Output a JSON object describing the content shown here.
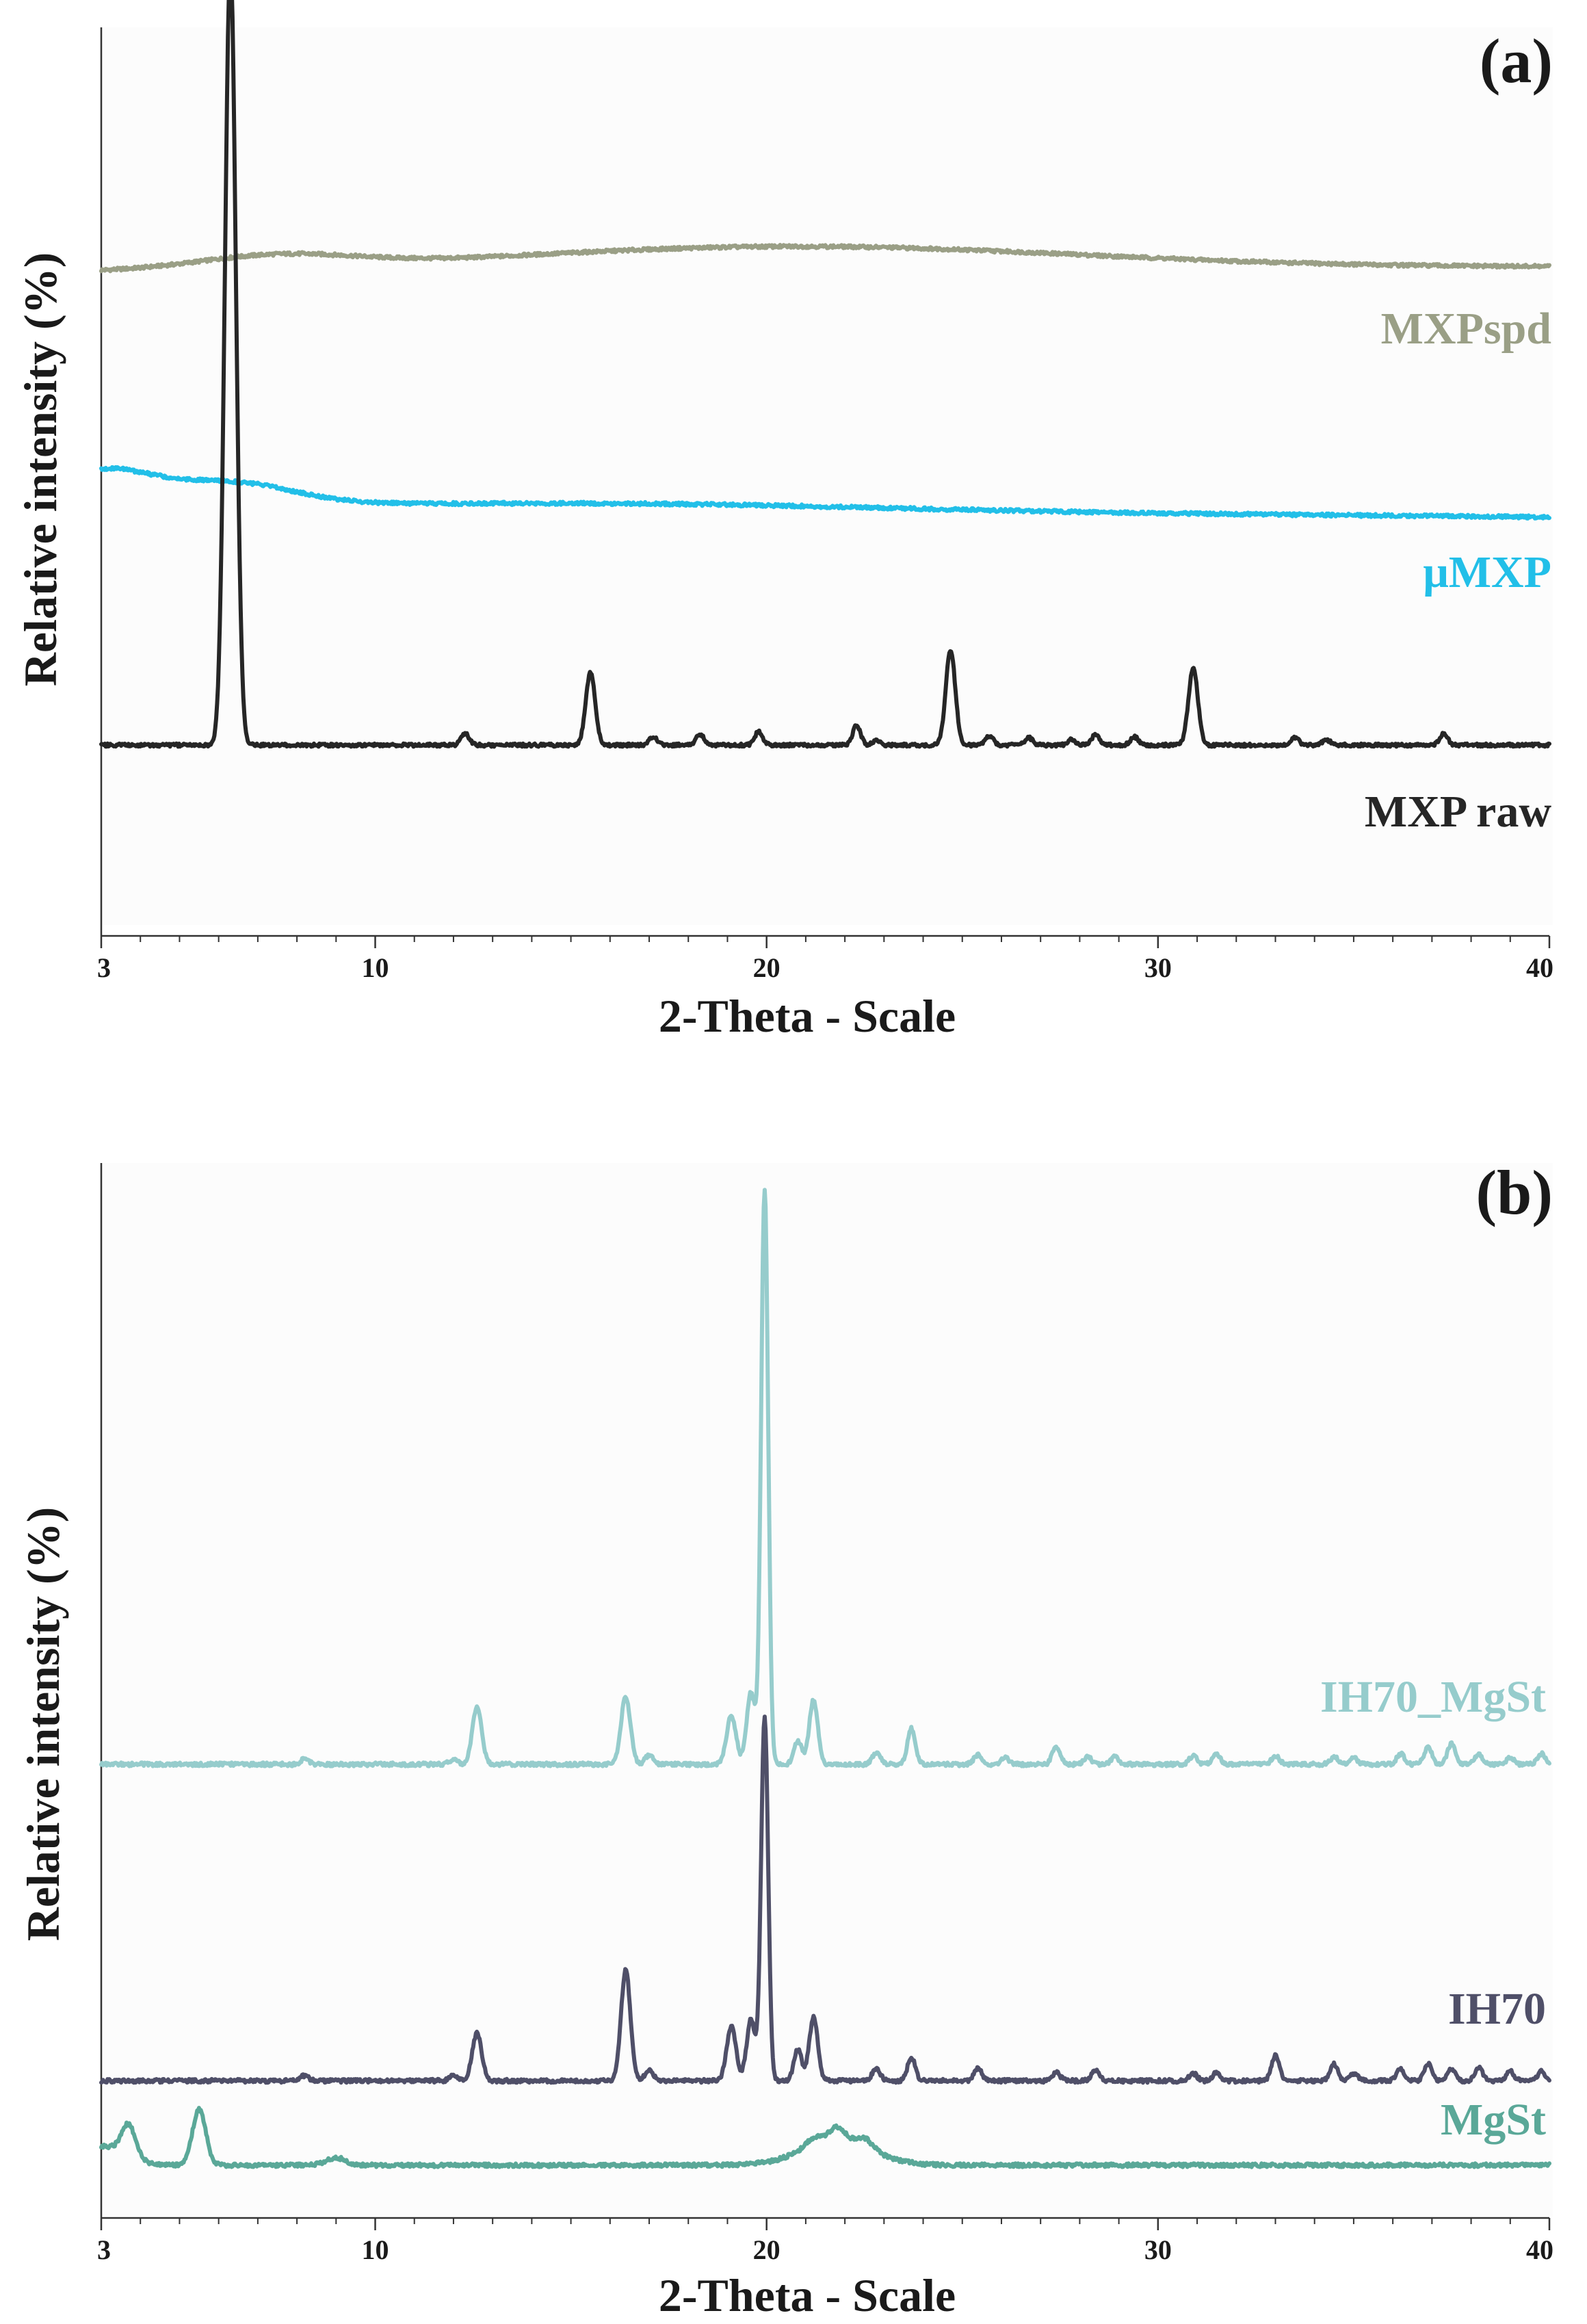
{
  "chart_data": [
    {
      "type": "line",
      "panel_label": "(a)",
      "xlabel": "2-Theta - Scale",
      "ylabel": "Relative intensity (%)",
      "xlim": [
        3,
        40
      ],
      "x_ticks": [
        3,
        10,
        20,
        30,
        40
      ],
      "y_ticks": [],
      "grid": false,
      "series": [
        {
          "name": "MXPspd",
          "color": "#9a9f86",
          "baseline": 73,
          "features": [
            {
              "type": "hump",
              "x": 7.5,
              "height": 1.4,
              "width": 2.0
            },
            {
              "type": "hump",
              "x": 20.5,
              "height": 2.6,
              "width": 7.5
            }
          ],
          "end_drift": 0.6
        },
        {
          "name": "μMXP",
          "color": "#22bfe8",
          "baseline": 47.5,
          "features": [
            {
              "type": "hump",
              "x": 3.0,
              "height": 3.6,
              "width": 1.3
            },
            {
              "type": "hump",
              "x": 6.3,
              "height": 2.4,
              "width": 1.6
            },
            {
              "type": "hump",
              "x": 17.0,
              "height": 0.6,
              "width": 6.0
            }
          ],
          "end_drift": -1.4
        },
        {
          "name": "MXP raw",
          "color": "#262626",
          "baseline": 21,
          "features": [
            {
              "type": "peak",
              "x": 6.3,
              "height": 86,
              "width": 0.14
            },
            {
              "type": "peak",
              "x": 12.3,
              "height": 1.3,
              "width": 0.1
            },
            {
              "type": "peak",
              "x": 15.5,
              "height": 8.0,
              "width": 0.12
            },
            {
              "type": "peak",
              "x": 17.1,
              "height": 0.9,
              "width": 0.1
            },
            {
              "type": "peak",
              "x": 18.3,
              "height": 1.2,
              "width": 0.1
            },
            {
              "type": "peak",
              "x": 19.8,
              "height": 1.5,
              "width": 0.1
            },
            {
              "type": "peak",
              "x": 22.3,
              "height": 2.2,
              "width": 0.1
            },
            {
              "type": "peak",
              "x": 22.8,
              "height": 0.5,
              "width": 0.1
            },
            {
              "type": "peak",
              "x": 24.7,
              "height": 10.5,
              "width": 0.12
            },
            {
              "type": "peak",
              "x": 25.7,
              "height": 1.0,
              "width": 0.1
            },
            {
              "type": "peak",
              "x": 26.7,
              "height": 0.8,
              "width": 0.1
            },
            {
              "type": "peak",
              "x": 27.8,
              "height": 0.6,
              "width": 0.1
            },
            {
              "type": "peak",
              "x": 28.4,
              "height": 1.1,
              "width": 0.1
            },
            {
              "type": "peak",
              "x": 29.4,
              "height": 0.9,
              "width": 0.1
            },
            {
              "type": "peak",
              "x": 30.9,
              "height": 8.5,
              "width": 0.12
            },
            {
              "type": "peak",
              "x": 33.5,
              "height": 0.8,
              "width": 0.1
            },
            {
              "type": "peak",
              "x": 34.3,
              "height": 0.6,
              "width": 0.1
            },
            {
              "type": "peak",
              "x": 37.3,
              "height": 1.3,
              "width": 0.1
            }
          ],
          "end_drift": 0
        }
      ]
    },
    {
      "type": "line",
      "panel_label": "(b)",
      "xlabel": "2-Theta - Scale",
      "ylabel": "Relative intensity (%)",
      "xlim": [
        3,
        40
      ],
      "x_ticks": [
        3,
        10,
        20,
        30,
        40
      ],
      "y_ticks": [],
      "grid": false,
      "series": [
        {
          "name": "IH70_MgSt",
          "color": "#96cccc",
          "baseline": 43,
          "features": [
            {
              "type": "peak",
              "x": 8.2,
              "height": 0.5,
              "width": 0.1
            },
            {
              "type": "peak",
              "x": 12.0,
              "height": 0.5,
              "width": 0.1
            },
            {
              "type": "peak",
              "x": 12.6,
              "height": 5.4,
              "width": 0.12
            },
            {
              "type": "peak",
              "x": 16.4,
              "height": 6.4,
              "width": 0.12
            },
            {
              "type": "peak",
              "x": 17.0,
              "height": 0.9,
              "width": 0.1
            },
            {
              "type": "peak",
              "x": 19.1,
              "height": 4.6,
              "width": 0.12
            },
            {
              "type": "peak",
              "x": 19.6,
              "height": 6.8,
              "width": 0.11
            },
            {
              "type": "peak",
              "x": 19.95,
              "height": 54.5,
              "width": 0.09
            },
            {
              "type": "peak",
              "x": 20.8,
              "height": 2.2,
              "width": 0.1
            },
            {
              "type": "peak",
              "x": 21.2,
              "height": 6.1,
              "width": 0.11
            },
            {
              "type": "peak",
              "x": 22.8,
              "height": 1.1,
              "width": 0.1
            },
            {
              "type": "peak",
              "x": 23.7,
              "height": 3.4,
              "width": 0.1
            },
            {
              "type": "peak",
              "x": 25.4,
              "height": 0.9,
              "width": 0.1
            },
            {
              "type": "peak",
              "x": 26.1,
              "height": 0.6,
              "width": 0.1
            },
            {
              "type": "peak",
              "x": 27.4,
              "height": 1.7,
              "width": 0.1
            },
            {
              "type": "peak",
              "x": 28.2,
              "height": 0.7,
              "width": 0.1
            },
            {
              "type": "peak",
              "x": 28.9,
              "height": 0.7,
              "width": 0.1
            },
            {
              "type": "peak",
              "x": 30.9,
              "height": 0.8,
              "width": 0.1
            },
            {
              "type": "peak",
              "x": 31.5,
              "height": 0.9,
              "width": 0.1
            },
            {
              "type": "peak",
              "x": 33.0,
              "height": 0.8,
              "width": 0.1
            },
            {
              "type": "peak",
              "x": 34.5,
              "height": 0.7,
              "width": 0.1
            },
            {
              "type": "peak",
              "x": 35.0,
              "height": 0.6,
              "width": 0.1
            },
            {
              "type": "peak",
              "x": 36.2,
              "height": 1.0,
              "width": 0.1
            },
            {
              "type": "peak",
              "x": 36.9,
              "height": 1.6,
              "width": 0.1
            },
            {
              "type": "peak",
              "x": 37.5,
              "height": 2.0,
              "width": 0.1
            },
            {
              "type": "peak",
              "x": 38.2,
              "height": 0.9,
              "width": 0.1
            },
            {
              "type": "peak",
              "x": 39.0,
              "height": 0.6,
              "width": 0.1
            },
            {
              "type": "peak",
              "x": 39.8,
              "height": 1.0,
              "width": 0.1
            }
          ],
          "end_drift": 0
        },
        {
          "name": "IH70",
          "color": "#4f4f68",
          "baseline": 13,
          "features": [
            {
              "type": "peak",
              "x": 8.2,
              "height": 0.5,
              "width": 0.1
            },
            {
              "type": "peak",
              "x": 12.0,
              "height": 0.5,
              "width": 0.1
            },
            {
              "type": "peak",
              "x": 12.6,
              "height": 4.5,
              "width": 0.12
            },
            {
              "type": "peak",
              "x": 16.4,
              "height": 10.5,
              "width": 0.12
            },
            {
              "type": "peak",
              "x": 17.0,
              "height": 1.1,
              "width": 0.1
            },
            {
              "type": "peak",
              "x": 19.1,
              "height": 5.2,
              "width": 0.12
            },
            {
              "type": "peak",
              "x": 19.6,
              "height": 5.8,
              "width": 0.11
            },
            {
              "type": "peak",
              "x": 19.95,
              "height": 34.5,
              "width": 0.09
            },
            {
              "type": "peak",
              "x": 20.8,
              "height": 3.0,
              "width": 0.1
            },
            {
              "type": "peak",
              "x": 21.2,
              "height": 6.0,
              "width": 0.11
            },
            {
              "type": "peak",
              "x": 22.8,
              "height": 1.2,
              "width": 0.1
            },
            {
              "type": "peak",
              "x": 23.7,
              "height": 2.2,
              "width": 0.1
            },
            {
              "type": "peak",
              "x": 25.4,
              "height": 1.2,
              "width": 0.1
            },
            {
              "type": "peak",
              "x": 27.4,
              "height": 0.8,
              "width": 0.1
            },
            {
              "type": "peak",
              "x": 28.4,
              "height": 1.0,
              "width": 0.1
            },
            {
              "type": "peak",
              "x": 30.9,
              "height": 0.7,
              "width": 0.1
            },
            {
              "type": "peak",
              "x": 31.5,
              "height": 0.8,
              "width": 0.1
            },
            {
              "type": "peak",
              "x": 33.0,
              "height": 2.4,
              "width": 0.1
            },
            {
              "type": "peak",
              "x": 34.5,
              "height": 1.6,
              "width": 0.1
            },
            {
              "type": "peak",
              "x": 35.0,
              "height": 0.7,
              "width": 0.1
            },
            {
              "type": "peak",
              "x": 36.2,
              "height": 1.1,
              "width": 0.1
            },
            {
              "type": "peak",
              "x": 36.9,
              "height": 1.6,
              "width": 0.1
            },
            {
              "type": "peak",
              "x": 37.5,
              "height": 1.1,
              "width": 0.1
            },
            {
              "type": "peak",
              "x": 38.2,
              "height": 1.2,
              "width": 0.1
            },
            {
              "type": "peak",
              "x": 39.0,
              "height": 0.9,
              "width": 0.1
            },
            {
              "type": "peak",
              "x": 39.8,
              "height": 0.9,
              "width": 0.1
            }
          ],
          "end_drift": 0
        },
        {
          "name": "MgSt",
          "color": "#5aa898",
          "baseline": 5,
          "features": [
            {
              "type": "hump",
              "x": 3.0,
              "height": 1.8,
              "width": 0.6
            },
            {
              "type": "peak",
              "x": 3.7,
              "height": 3.0,
              "width": 0.18
            },
            {
              "type": "peak",
              "x": 5.5,
              "height": 5.3,
              "width": 0.17
            },
            {
              "type": "peak",
              "x": 9.0,
              "height": 0.7,
              "width": 0.25
            },
            {
              "type": "hump",
              "x": 21.8,
              "height": 2.3,
              "width": 0.9
            },
            {
              "type": "peak",
              "x": 21.2,
              "height": 0.8,
              "width": 0.2
            },
            {
              "type": "peak",
              "x": 21.8,
              "height": 1.3,
              "width": 0.2
            },
            {
              "type": "peak",
              "x": 22.5,
              "height": 0.9,
              "width": 0.2
            }
          ],
          "end_drift": 0
        }
      ]
    }
  ]
}
